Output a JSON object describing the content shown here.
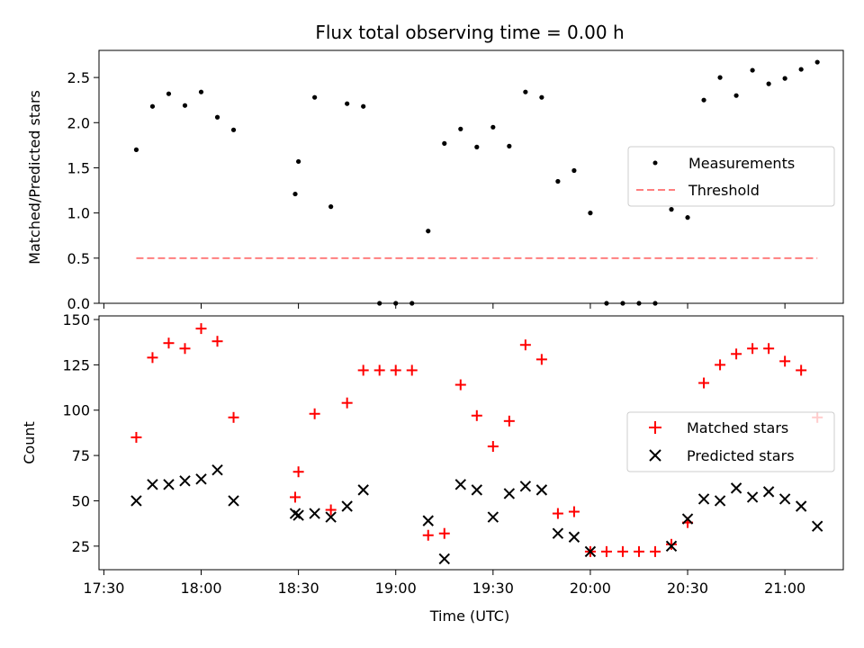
{
  "chart_data": {
    "type": "scatter",
    "title": "Flux total observing time = 0.00 h",
    "xlabel": "Time (UTC)",
    "xlim": [
      "17:30",
      "21:10"
    ],
    "x_ticks": [
      "17:30",
      "18:00",
      "18:30",
      "19:00",
      "19:30",
      "20:00",
      "20:30",
      "21:00"
    ],
    "x": [
      "17:40",
      "17:45",
      "17:50",
      "17:55",
      "18:00",
      "18:05",
      "18:10",
      "18:29",
      "18:30",
      "18:35",
      "18:40",
      "18:45",
      "18:50",
      "18:55",
      "19:00",
      "19:05",
      "19:10",
      "19:15",
      "19:20",
      "19:25",
      "19:30",
      "19:35",
      "19:40",
      "19:45",
      "19:50",
      "19:55",
      "20:00",
      "20:05",
      "20:10",
      "20:15",
      "20:20",
      "20:25",
      "20:30",
      "20:35",
      "20:40",
      "20:45",
      "20:50",
      "20:55",
      "21:00",
      "21:05",
      "21:10"
    ],
    "panels": [
      {
        "name": "ratio",
        "ylabel": "Matched/Predicted stars",
        "ylim": [
          0,
          2.8
        ],
        "y_ticks": [
          "0.0",
          "0.5",
          "1.0",
          "1.5",
          "2.0",
          "2.5"
        ],
        "legend_position": "center-right",
        "series": [
          {
            "name": "Measurements",
            "marker": "dot",
            "color": "#000000",
            "values": [
              1.7,
              2.18,
              2.32,
              2.19,
              2.34,
              2.06,
              1.92,
              1.21,
              1.57,
              2.28,
              1.07,
              2.21,
              2.18,
              0.0,
              0.0,
              0.0,
              0.8,
              1.77,
              1.93,
              1.73,
              1.95,
              1.74,
              2.34,
              2.28,
              1.35,
              1.47,
              1.0,
              0.0,
              0.0,
              0.0,
              0.0,
              1.04,
              0.95,
              2.25,
              2.5,
              2.3,
              2.58,
              2.43,
              2.49,
              2.59,
              2.67
            ]
          },
          {
            "name": "Threshold",
            "marker": "dashed-line",
            "color": "#ff7f7f",
            "values": [
              0.5,
              0.5
            ],
            "x": [
              "17:40",
              "21:10"
            ]
          }
        ]
      },
      {
        "name": "counts",
        "ylabel": "Count",
        "ylim": [
          12,
          152
        ],
        "y_ticks": [
          "25",
          "50",
          "75",
          "100",
          "125",
          "150"
        ],
        "legend_position": "center-right",
        "series": [
          {
            "name": "Matched stars",
            "marker": "plus",
            "color": "#ff0000",
            "values": [
              85,
              129,
              137,
              134,
              145,
              138,
              96,
              52,
              66,
              98,
              45,
              104,
              122,
              122,
              122,
              122,
              31,
              32,
              114,
              97,
              80,
              94,
              136,
              128,
              43,
              44,
              22,
              22,
              22,
              22,
              22,
              26,
              38,
              115,
              125,
              131,
              134,
              134,
              127,
              122,
              96
            ]
          },
          {
            "name": "Predicted stars",
            "marker": "x",
            "color": "#000000",
            "values": [
              50,
              59,
              59,
              61,
              62,
              67,
              50,
              43,
              42,
              43,
              41,
              47,
              56,
              null,
              null,
              null,
              39,
              18,
              59,
              56,
              41,
              54,
              58,
              56,
              32,
              30,
              22,
              null,
              null,
              null,
              null,
              25,
              40,
              51,
              50,
              57,
              52,
              55,
              51,
              47,
              36
            ]
          }
        ]
      }
    ]
  }
}
